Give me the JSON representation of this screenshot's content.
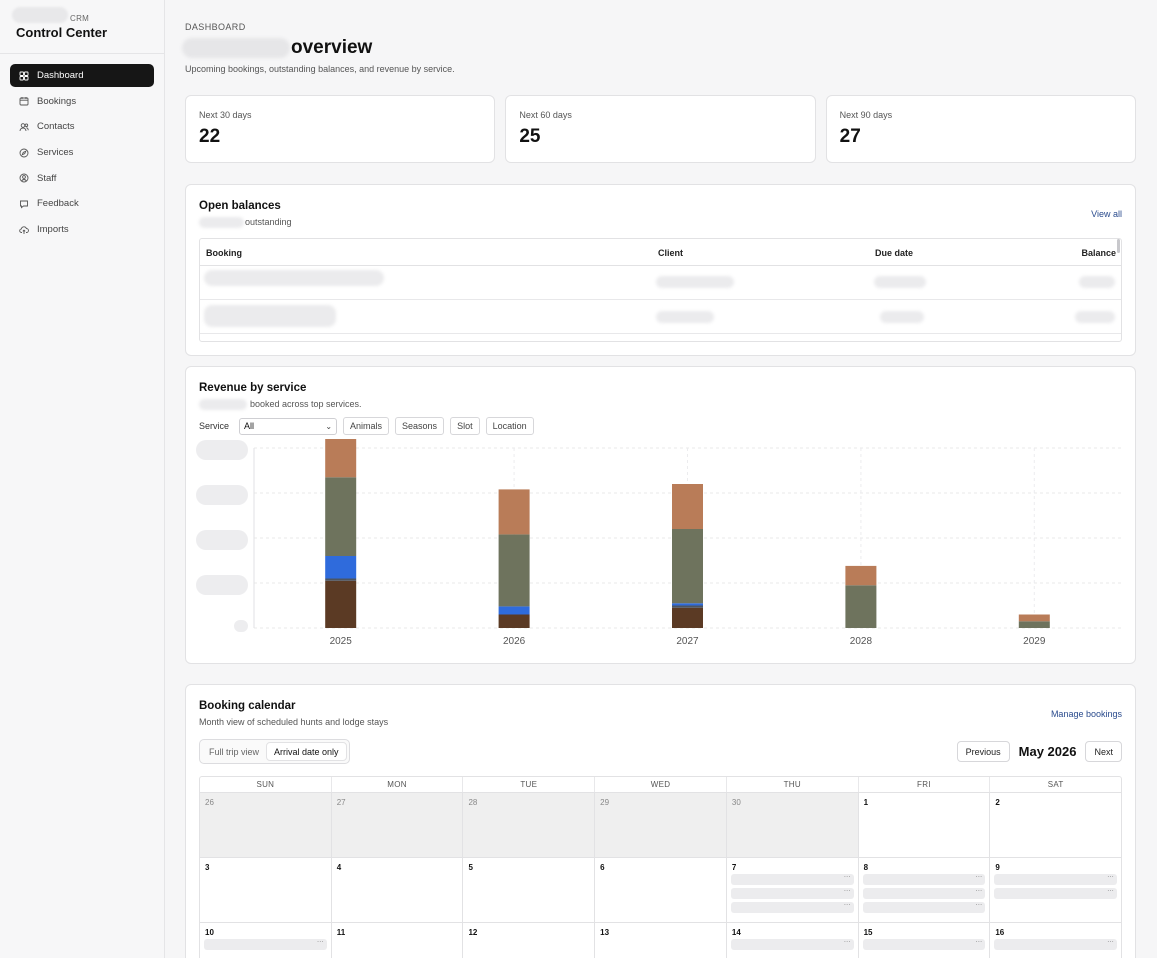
{
  "sidebar": {
    "crm_label": "CRM",
    "title": "Control Center",
    "items": [
      {
        "label": "Dashboard",
        "icon": "grid-icon",
        "active": true
      },
      {
        "label": "Bookings",
        "icon": "calendar-icon"
      },
      {
        "label": "Contacts",
        "icon": "users-icon"
      },
      {
        "label": "Services",
        "icon": "compass-icon"
      },
      {
        "label": "Staff",
        "icon": "user-circle-icon"
      },
      {
        "label": "Feedback",
        "icon": "message-icon"
      },
      {
        "label": "Imports",
        "icon": "cloud-upload-icon"
      }
    ]
  },
  "header": {
    "eyebrow": "DASHBOARD",
    "title_suffix": "overview",
    "subtitle": "Upcoming bookings, outstanding balances, and revenue by service."
  },
  "stats": [
    {
      "label": "Next 30 days",
      "value": "22"
    },
    {
      "label": "Next 60 days",
      "value": "25"
    },
    {
      "label": "Next 90 days",
      "value": "27"
    }
  ],
  "balances": {
    "title": "Open balances",
    "subtitle_suffix": "outstanding",
    "view_all": "View all",
    "columns": [
      "Booking",
      "Client",
      "Due date",
      "Balance"
    ]
  },
  "revenue": {
    "title": "Revenue by service",
    "subtitle_suffix": "booked across top services.",
    "filter_label": "Service",
    "filter_value": "All",
    "buttons": [
      "Animals",
      "Seasons",
      "Slot",
      "Location"
    ]
  },
  "chart_data": {
    "type": "bar",
    "stacked": true,
    "categories": [
      "2025",
      "2026",
      "2027",
      "2028",
      "2029"
    ],
    "series": [
      {
        "color": "#5b3a24",
        "values": [
          1.05,
          0.3,
          0.45,
          0,
          0
        ]
      },
      {
        "color": "#4b5563",
        "values": [
          0.05,
          0,
          0.05,
          0,
          0
        ]
      },
      {
        "color": "#2f6bdc",
        "values": [
          0.5,
          0.18,
          0.05,
          0,
          0
        ]
      },
      {
        "color": "#6e735d",
        "values": [
          1.75,
          1.6,
          1.65,
          0.95,
          0.15
        ]
      },
      {
        "color": "#b97c58",
        "values": [
          0.85,
          1.0,
          1.0,
          0.43,
          0.15
        ]
      }
    ],
    "grid": true,
    "legend": "none"
  },
  "calendar": {
    "title": "Booking calendar",
    "subtitle": "Month view of scheduled hunts and lodge stays",
    "manage": "Manage bookings",
    "views": [
      "Full trip view",
      "Arrival date only"
    ],
    "previous": "Previous",
    "month": "May 2026",
    "next": "Next",
    "weekdays": [
      "SUN",
      "MON",
      "TUE",
      "WED",
      "THU",
      "FRI",
      "SAT"
    ],
    "weeks": [
      [
        {
          "d": "26",
          "out": true
        },
        {
          "d": "27",
          "out": true
        },
        {
          "d": "28",
          "out": true
        },
        {
          "d": "29",
          "out": true
        },
        {
          "d": "30",
          "out": true
        },
        {
          "d": "1"
        },
        {
          "d": "2"
        }
      ],
      [
        {
          "d": "3"
        },
        {
          "d": "4"
        },
        {
          "d": "5"
        },
        {
          "d": "6"
        },
        {
          "d": "7",
          "ev": 3
        },
        {
          "d": "8",
          "ev": 3
        },
        {
          "d": "9",
          "ev": 2
        }
      ],
      [
        {
          "d": "10",
          "ev": 1
        },
        {
          "d": "11"
        },
        {
          "d": "12"
        },
        {
          "d": "13"
        },
        {
          "d": "14",
          "ev": 1
        },
        {
          "d": "15",
          "ev": 1
        },
        {
          "d": "16",
          "ev": 1
        }
      ]
    ]
  }
}
